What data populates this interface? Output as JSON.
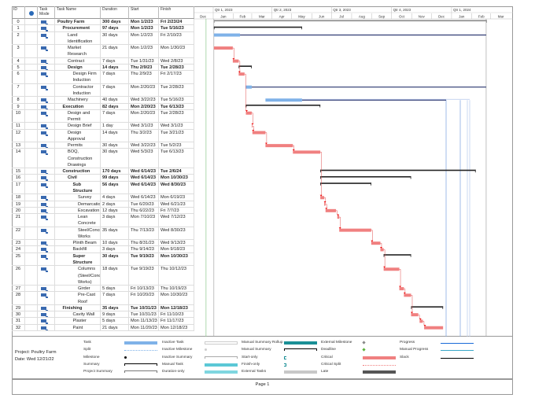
{
  "columns": {
    "id": "ID",
    "indicators": "i",
    "mode": "Task Mode",
    "name": "Task Name",
    "duration": "Duration",
    "start": "Start",
    "finish": "Finish"
  },
  "timescale": {
    "quarters": [
      "Qtr 1, 2023",
      "Qtr 2, 2023",
      "Qtr 3, 2023",
      "Qtr 4, 2023",
      "Qtr 1, 2024"
    ],
    "months": [
      "Dec",
      "Jan",
      "Feb",
      "Mar",
      "Apr",
      "May",
      "Jun",
      "Jul",
      "Aug",
      "Sep",
      "Oct",
      "Nov",
      "Dec",
      "Jan",
      "Feb",
      "Mar"
    ]
  },
  "colors": {
    "critical": "#f08080",
    "task": "#7fb2e8",
    "slack": "#0d1a5c",
    "summary": "#222",
    "link": "#e05050",
    "today": "#8cc88c"
  },
  "tasks": [
    {
      "id": "0",
      "name": "Poultry Farm",
      "duration": "300 days",
      "start": "Mon 1/2/23",
      "finish": "Fri 2/23/24",
      "bold": true,
      "level": 0,
      "bar": "project"
    },
    {
      "id": "1",
      "name": "Procurement",
      "duration": "97 days",
      "start": "Mon 1/2/23",
      "finish": "Tue 5/16/23",
      "bold": true,
      "level": 1,
      "bar": "summary"
    },
    {
      "id": "2",
      "name": "Land Identification",
      "duration": "30 days",
      "start": "Mon 1/2/23",
      "finish": "Fri 2/10/23",
      "level": 2,
      "bar": "task"
    },
    {
      "id": "3",
      "name": "Market Research",
      "duration": "21 days",
      "start": "Mon 1/2/23",
      "finish": "Mon 1/30/23",
      "level": 2,
      "bar": "critical"
    },
    {
      "id": "4",
      "name": "Contract",
      "duration": "7 days",
      "start": "Tue 1/31/23",
      "finish": "Wed 2/8/23",
      "level": 2,
      "bar": "critical"
    },
    {
      "id": "5",
      "name": "Design",
      "duration": "14 days",
      "start": "Thu 2/9/23",
      "finish": "Tue 2/28/23",
      "bold": true,
      "level": 2,
      "bar": "summary"
    },
    {
      "id": "6",
      "name": "Design Firm Induction",
      "duration": "7 days",
      "start": "Thu 2/9/23",
      "finish": "Fri 2/17/23",
      "level": 3,
      "bar": "critical"
    },
    {
      "id": "7",
      "name": "Contractor Induction",
      "duration": "7 days",
      "start": "Mon 2/20/23",
      "finish": "Tue 2/28/23",
      "level": 3,
      "bar": "task"
    },
    {
      "id": "8",
      "name": "Machinery",
      "duration": "40 days",
      "start": "Wed 3/22/23",
      "finish": "Tue 5/16/23",
      "level": 2,
      "bar": "task"
    },
    {
      "id": "9",
      "name": "Execution",
      "duration": "82 days",
      "start": "Mon 2/20/23",
      "finish": "Tue 6/13/23",
      "bold": true,
      "level": 1,
      "bar": "summary"
    },
    {
      "id": "10",
      "name": "Design and Permit",
      "duration": "7 days",
      "start": "Mon 2/20/23",
      "finish": "Tue 2/28/23",
      "level": 2,
      "bar": "critical"
    },
    {
      "id": "11",
      "name": "Design Brief",
      "duration": "1 day",
      "start": "Wed 3/1/23",
      "finish": "Wed 3/1/23",
      "level": 2,
      "bar": "critical"
    },
    {
      "id": "12",
      "name": "Design Approval",
      "duration": "14 days",
      "start": "Thu 3/2/23",
      "finish": "Tue 3/21/23",
      "level": 2,
      "bar": "critical"
    },
    {
      "id": "13",
      "name": "Permits",
      "duration": "30 days",
      "start": "Wed 3/22/23",
      "finish": "Tue 5/2/23",
      "level": 2,
      "bar": "critical"
    },
    {
      "id": "14",
      "name": "BOQ, Construction Drawings",
      "duration": "30 days",
      "start": "Wed 5/3/23",
      "finish": "Tue 6/13/23",
      "level": 2,
      "bar": "critical"
    },
    {
      "id": "15",
      "name": "Construction",
      "duration": "170 days",
      "start": "Wed 6/14/23",
      "finish": "Tue 2/6/24",
      "bold": true,
      "level": 1,
      "bar": "summary"
    },
    {
      "id": "16",
      "name": "Civil",
      "duration": "99 days",
      "start": "Wed 6/14/23",
      "finish": "Mon 10/30/23",
      "bold": true,
      "level": 2,
      "bar": "summary"
    },
    {
      "id": "17",
      "name": "Sub Structure",
      "duration": "56 days",
      "start": "Wed 6/14/23",
      "finish": "Wed 8/30/23",
      "bold": true,
      "level": 3,
      "bar": "summary"
    },
    {
      "id": "18",
      "name": "Survey",
      "duration": "4 days",
      "start": "Wed 6/14/23",
      "finish": "Mon 6/19/23",
      "level": 4,
      "bar": "critical"
    },
    {
      "id": "19",
      "name": "Demarcation",
      "duration": "2 days",
      "start": "Tue 6/20/23",
      "finish": "Wed 6/21/23",
      "level": 4,
      "bar": "critical"
    },
    {
      "id": "20",
      "name": "Excavation",
      "duration": "12 days",
      "start": "Thu 6/22/23",
      "finish": "Fri 7/7/23",
      "level": 4,
      "bar": "critical"
    },
    {
      "id": "21",
      "name": "Lean Concrete",
      "duration": "3 days",
      "start": "Mon 7/10/23",
      "finish": "Wed 7/12/23",
      "level": 4,
      "bar": "critical"
    },
    {
      "id": "22",
      "name": "Steel/Concrete Works",
      "duration": "35 days",
      "start": "Thu 7/13/23",
      "finish": "Wed 8/30/23",
      "level": 4,
      "bar": "critical"
    },
    {
      "id": "23",
      "name": "Plinth Beam",
      "duration": "10 days",
      "start": "Thu 8/31/23",
      "finish": "Wed 9/13/23",
      "level": 3,
      "bar": "critical"
    },
    {
      "id": "24",
      "name": "Backfill",
      "duration": "3 days",
      "start": "Thu 9/14/23",
      "finish": "Mon 9/18/23",
      "level": 3,
      "bar": "critical"
    },
    {
      "id": "25",
      "name": "Super Structure",
      "duration": "30 days",
      "start": "Tue 9/19/23",
      "finish": "Mon 10/30/23",
      "bold": true,
      "level": 3,
      "bar": "summary"
    },
    {
      "id": "26",
      "name": "Columns (Steel/Concrete Works)",
      "duration": "18 days",
      "start": "Tue 9/19/23",
      "finish": "Thu 10/12/23",
      "level": 4,
      "bar": "critical"
    },
    {
      "id": "27",
      "name": "Girder",
      "duration": "5 days",
      "start": "Fri 10/13/23",
      "finish": "Thu 10/19/23",
      "level": 4,
      "bar": "critical"
    },
    {
      "id": "28",
      "name": "Pre-Cast Roof",
      "duration": "7 days",
      "start": "Fri 10/20/23",
      "finish": "Mon 10/30/23",
      "level": 4,
      "bar": "critical"
    },
    {
      "id": "29",
      "name": "Finishing",
      "duration": "35 days",
      "start": "Tue 10/31/23",
      "finish": "Mon 12/18/23",
      "bold": true,
      "level": 1,
      "bar": "summary"
    },
    {
      "id": "30",
      "name": "Cavity Wall",
      "duration": "9 days",
      "start": "Tue 10/31/23",
      "finish": "Fri 11/10/23",
      "level": 3,
      "bar": "critical"
    },
    {
      "id": "31",
      "name": "Plaster",
      "duration": "5 days",
      "start": "Mon 11/13/23",
      "finish": "Fri 11/17/23",
      "level": 3,
      "bar": "critical"
    },
    {
      "id": "32",
      "name": "Paint",
      "duration": "21 days",
      "start": "Mon 11/20/23",
      "finish": "Mon 12/18/23",
      "level": 3,
      "bar": "critical"
    }
  ],
  "legend": {
    "project": "Project: Poultry Farm",
    "date": "Date: Wed 12/21/22",
    "items": [
      [
        "Task",
        "Split",
        "Milestone",
        "Summary",
        "Project Summary"
      ],
      [
        "Inactive Task",
        "Inactive Milestone",
        "Inactive Summary",
        "Manual Task",
        "Duration-only"
      ],
      [
        "Manual Summary Rollup",
        "Manual Summary",
        "Start-only",
        "Finish-only",
        "External Tasks"
      ],
      [
        "External Milestone",
        "Deadline",
        "Critical",
        "Critical Split",
        "Late"
      ],
      [
        "Progress",
        "Manual Progress",
        "Slack"
      ]
    ]
  },
  "footer": {
    "page": "Page 1"
  }
}
